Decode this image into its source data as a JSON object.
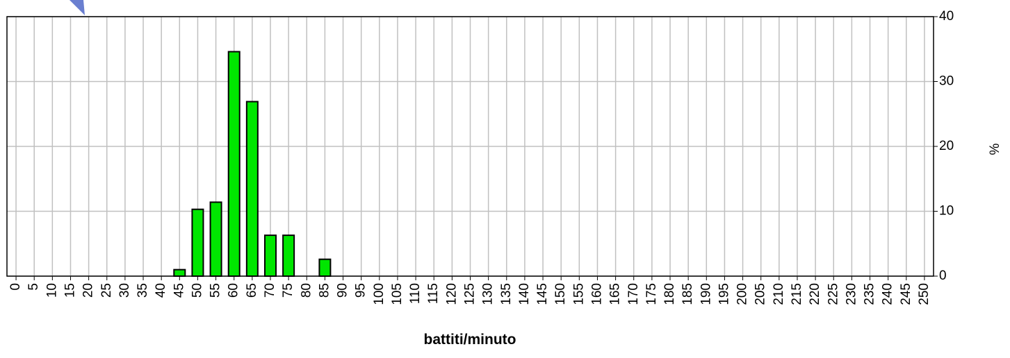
{
  "chart_data": {
    "type": "bar",
    "x_label": "battiti/minuto",
    "y_label": "%",
    "categories": [
      "0",
      "5",
      "10",
      "15",
      "20",
      "25",
      "30",
      "35",
      "40",
      "45",
      "50",
      "55",
      "60",
      "65",
      "70",
      "75",
      "80",
      "85",
      "90",
      "95",
      "100",
      "105",
      "110",
      "115",
      "120",
      "125",
      "130",
      "135",
      "140",
      "145",
      "150",
      "155",
      "160",
      "165",
      "170",
      "175",
      "180",
      "185",
      "190",
      "195",
      "200",
      "205",
      "210",
      "215",
      "220",
      "225",
      "230",
      "235",
      "240",
      "245",
      "250"
    ],
    "values": [
      null,
      null,
      null,
      null,
      null,
      null,
      null,
      null,
      null,
      1,
      10.3,
      11.4,
      34.6,
      26.9,
      6.3,
      6.3,
      null,
      2.6,
      null,
      null,
      null,
      null,
      null,
      null,
      null,
      null,
      null,
      null,
      null,
      null,
      null,
      null,
      null,
      null,
      null,
      null,
      null,
      null,
      null,
      null,
      null,
      null,
      null,
      null,
      null,
      null,
      null,
      null,
      null,
      null,
      null
    ],
    "color": "#00e600",
    "ylim": [
      0,
      40
    ],
    "yticks": [
      0,
      10,
      20,
      30,
      40
    ],
    "grid": true
  }
}
